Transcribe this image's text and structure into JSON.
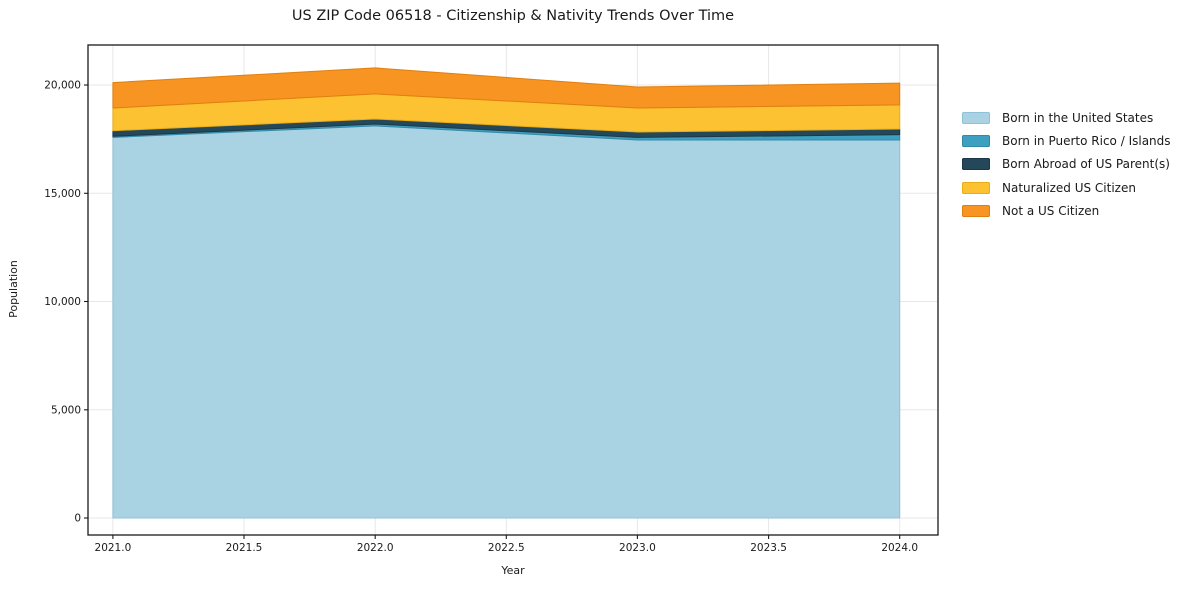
{
  "figure": {
    "background": "#ffffff",
    "spine_color": "#1a1a1a",
    "grid_color": "#e7e7e7",
    "tick_color": "#1a1a1a",
    "text_color": "#1a1a1a"
  },
  "chart_data": {
    "type": "area",
    "stacked": true,
    "title": "US ZIP Code 06518 - Citizenship & Nativity Trends Over Time",
    "xlabel": "Year",
    "ylabel": "Population",
    "x": [
      2021,
      2022,
      2023,
      2024
    ],
    "series": [
      {
        "name": "Born in the United States",
        "color": "#a9d3e3",
        "edge_color": "#8fc2d8",
        "values": [
          17580,
          18110,
          17460,
          17460
        ]
      },
      {
        "name": "Born in Puerto Rico / Islands",
        "color": "#3da0c0",
        "edge_color": "#338aa8",
        "values": [
          50,
          90,
          120,
          250
        ]
      },
      {
        "name": "Born Abroad of US Parent(s)",
        "color": "#24485a",
        "edge_color": "#1b3846",
        "values": [
          260,
          230,
          250,
          260
        ]
      },
      {
        "name": "Naturalized US Citizen",
        "color": "#fdc231",
        "edge_color": "#e9ad17",
        "values": [
          1050,
          1160,
          1110,
          1110
        ]
      },
      {
        "name": "Not a US Citizen",
        "color": "#f79422",
        "edge_color": "#e07f10",
        "values": [
          1170,
          1200,
          970,
          1010
        ]
      }
    ],
    "totals": [
      20110,
      20790,
      19910,
      20090
    ],
    "xticks": [
      2021.0,
      2021.5,
      2022.0,
      2022.5,
      2023.0,
      2023.5,
      2024.0
    ],
    "xtick_labels": [
      "2021.0",
      "2021.5",
      "2022.0",
      "2022.5",
      "2023.0",
      "2023.5",
      "2024.0"
    ],
    "yticks": [
      0,
      5000,
      10000,
      15000,
      20000
    ],
    "ytick_labels": [
      "0",
      "5,000",
      "10,000",
      "15,000",
      "20,000"
    ],
    "xlim": [
      2020.905,
      2024.146
    ],
    "ylim": [
      -785,
      21848
    ],
    "grid": true,
    "legend_position": "outside-upper-right"
  }
}
